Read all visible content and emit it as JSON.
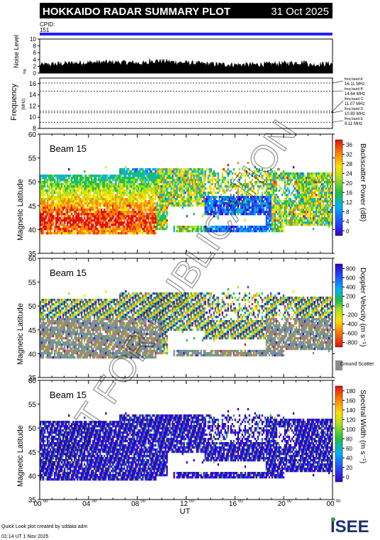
{
  "header": {
    "title": "HOKKAIDO RADAR SUMMARY PLOT",
    "date": "31 Oct 2025",
    "bg": "#000000",
    "fg": "#ffffff"
  },
  "cpid": {
    "label": "CPID:",
    "value": "151",
    "bar_color": "#2020ff"
  },
  "noise": {
    "ylabel": "Noise Level",
    "ylabel_sub": "log",
    "ticks": [
      "0",
      "2",
      "4",
      "6",
      "8",
      "10"
    ],
    "ylim": [
      0,
      10
    ]
  },
  "frequency": {
    "ylabel": "Frequency",
    "unit": "(MHz)",
    "ticks": [
      "8",
      "10",
      "12",
      "14",
      "16"
    ],
    "ylim": [
      8,
      17
    ],
    "bands": [
      {
        "name": "freq band A",
        "value": "16.11 MHz",
        "f": 16.11
      },
      {
        "name": "freq band B",
        "value": "14.64 MHz",
        "f": 14.64
      },
      {
        "name": "freq band C",
        "value": "11.07 MHz",
        "f": 11.07
      },
      {
        "name": "freq band D",
        "value": "10.80 MHz",
        "f": 10.8
      },
      {
        "name": "freq band E",
        "value": "9.11 MHz",
        "f": 9.11
      }
    ]
  },
  "panels": [
    {
      "beam": "Beam 15",
      "ylabel": "Magnetic Latitude",
      "cb_label": "Backscatter Power (dB)",
      "cb_ticks": [
        "0",
        "4",
        "8",
        "12",
        "16",
        "20",
        "24",
        "28",
        "32",
        "36"
      ],
      "cb_type": "rainbow"
    },
    {
      "beam": "Beam 15",
      "ylabel": "Magnetic Latitude",
      "cb_label": "Doppler Velocity (m s⁻¹)",
      "cb_ticks": [
        "-800",
        "-600",
        "-400",
        "-200",
        "0",
        "200",
        "400",
        "600",
        "800"
      ],
      "cb_type": "velocity",
      "gs_label": "Ground Scatter"
    },
    {
      "beam": "Beam 15",
      "ylabel": "Magnetic Latitude",
      "cb_label": "Spectral Width (m s⁻¹)",
      "cb_ticks": [
        "0",
        "20",
        "40",
        "60",
        "80",
        "100",
        "120",
        "140",
        "160",
        "180"
      ],
      "cb_type": "rainbow"
    }
  ],
  "lat_ticks": [
    "35",
    "40",
    "45",
    "50",
    "55",
    "60"
  ],
  "x_axis": {
    "ticks": [
      "00",
      "04",
      "08",
      "12",
      "16",
      "20",
      "00"
    ],
    "tick_sup": "00",
    "label": "UT"
  },
  "footer": {
    "created": "Quick Look plot created by sddata adm",
    "time": "01:14 UT  1 Nov 2025",
    "logo": "ISEE"
  },
  "watermark": "NOT FOR PUBLICATION",
  "chart_data": {
    "type": "heatmap",
    "title": "HOKKAIDO RADAR SUMMARY PLOT",
    "x": {
      "label": "UT",
      "range_hours": [
        0,
        24
      ]
    },
    "y": {
      "label": "Magnetic Latitude",
      "range": [
        35,
        60
      ]
    },
    "series": [
      {
        "name": "Backscatter Power (dB)",
        "zlim": [
          0,
          40
        ]
      },
      {
        "name": "Doppler Velocity (m s-1)",
        "zlim": [
          -900,
          900
        ]
      },
      {
        "name": "Spectral Width (m s-1)",
        "zlim": [
          0,
          200
        ]
      }
    ]
  }
}
